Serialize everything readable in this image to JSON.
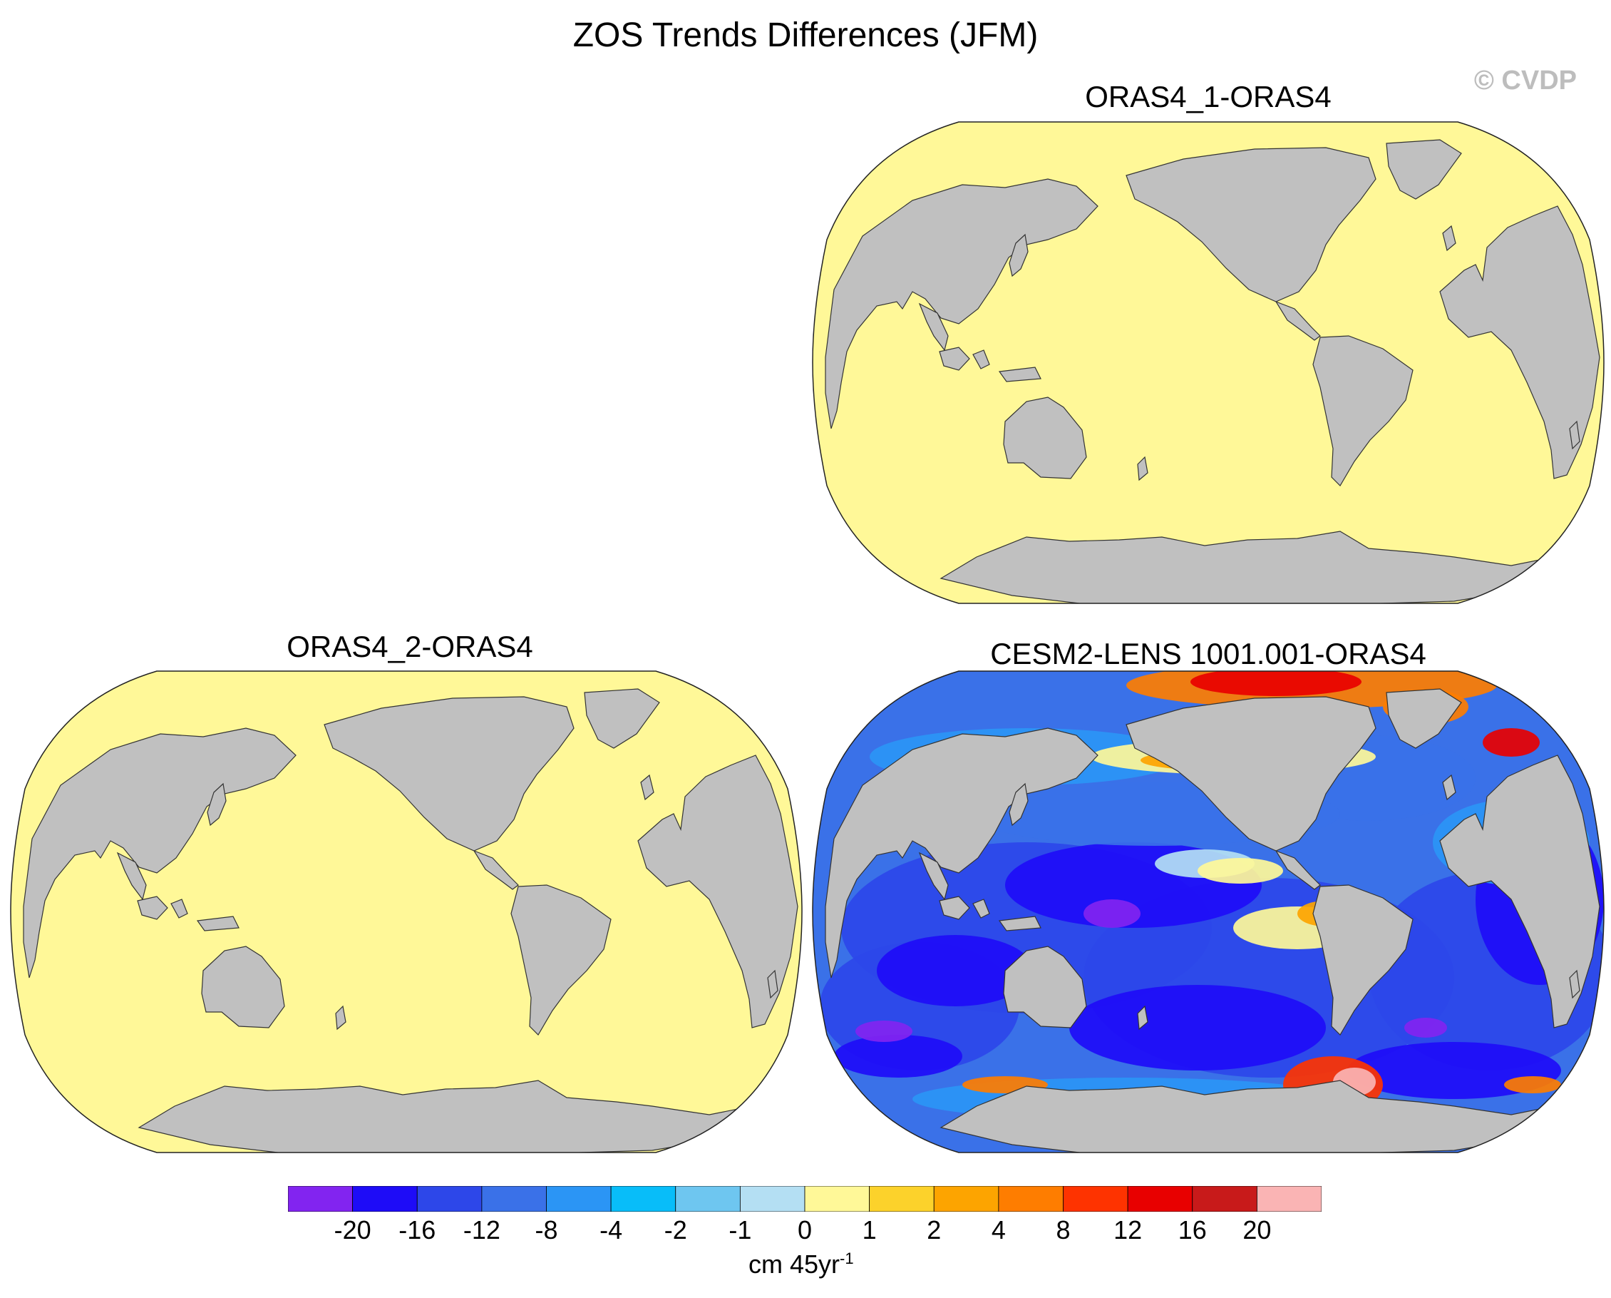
{
  "title": "ZOS Trends Differences (JFM)",
  "copyright": "© CVDP",
  "panels": [
    {
      "title": "ORAS4_1-ORAS4",
      "field": "uniform",
      "fill": "#fff898"
    },
    {
      "title": "ORAS4_2-ORAS4",
      "field": "uniform",
      "fill": "#fff898"
    },
    {
      "title": "CESM2-LENS 1001.001-ORAS4",
      "field": "anomaly",
      "fill": "#3a6fe5"
    }
  ],
  "colors": {
    "land": "#c0c0c0",
    "ocean_zero": "#fff898",
    "coast": "#333333"
  },
  "colorbar": {
    "colors": [
      "#8224f0",
      "#1e0cf7",
      "#2d47e9",
      "#3a71e8",
      "#2b95f5",
      "#08bdf9",
      "#6ec6f0",
      "#b4dff3",
      "#fff898",
      "#fcd22b",
      "#fda400",
      "#fe7d00",
      "#fe3300",
      "#e80000",
      "#c81a1a",
      "#fab4b4"
    ],
    "labels": [
      "-20",
      "-16",
      "-12",
      "-8",
      "-4",
      "-2",
      "-1",
      "0",
      "1",
      "2",
      "4",
      "8",
      "12",
      "16",
      "20"
    ],
    "units": "cm 45yr",
    "units_exponent": "-1"
  }
}
